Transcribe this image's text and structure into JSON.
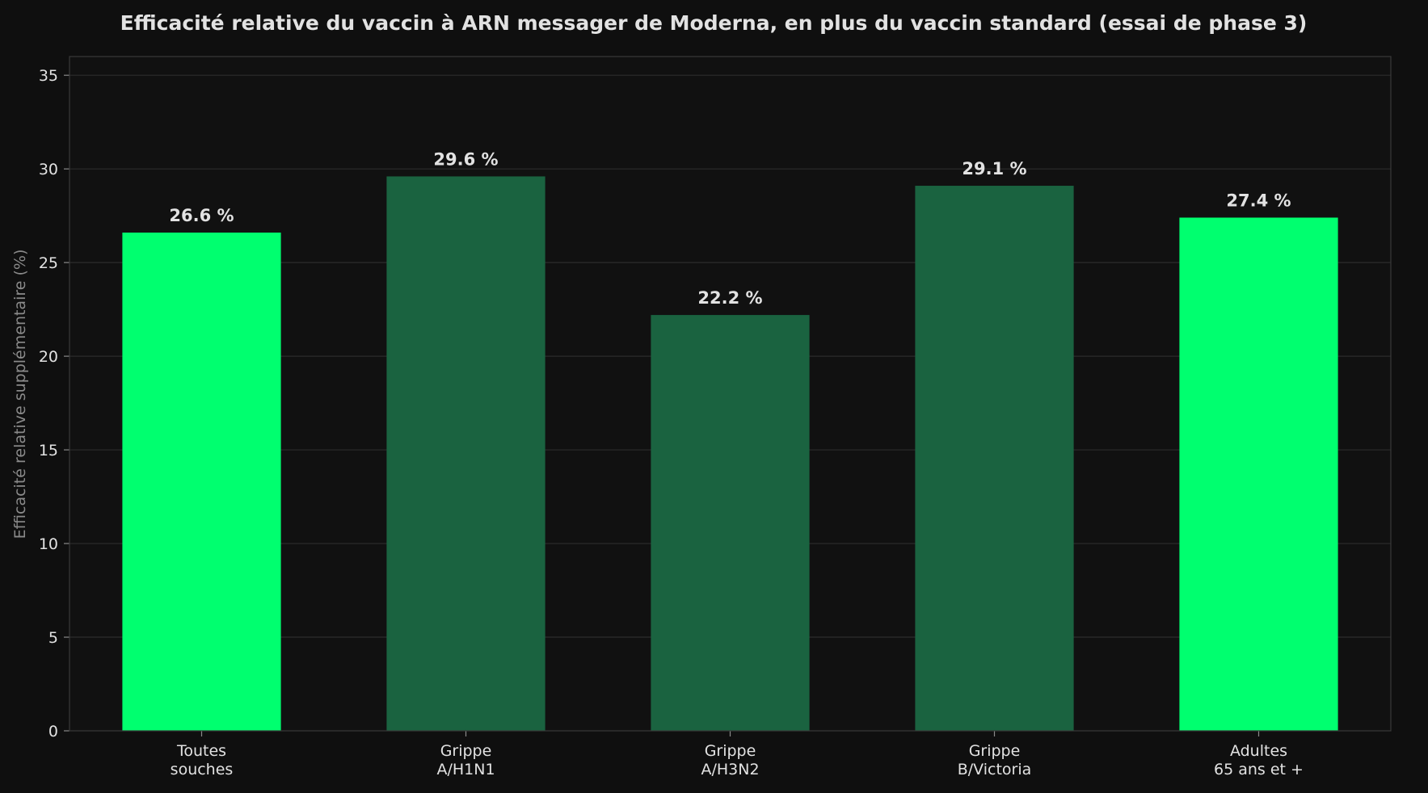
{
  "chart_data": {
    "type": "bar",
    "title": "Efficacité relative du vaccin à ARN messager de Moderna, en plus du vaccin standard (essai de phase 3)",
    "xlabel": "",
    "ylabel": "Efficacité relative supplémentaire (%)",
    "categories": [
      [
        "Toutes",
        "souches"
      ],
      [
        "Grippe",
        "A/H1N1"
      ],
      [
        "Grippe",
        "A/H3N2"
      ],
      [
        "Grippe",
        "B/Victoria"
      ],
      [
        "Adultes",
        "65 ans et +"
      ]
    ],
    "values": [
      26.6,
      29.6,
      22.2,
      29.1,
      27.4
    ],
    "data_labels": [
      "26.6 %",
      "29.6 %",
      "22.2 %",
      "29.1 %",
      "27.4 %"
    ],
    "bar_colors": [
      "#00ff6f",
      "#1a6340",
      "#1a6340",
      "#1a6340",
      "#00ff6f"
    ],
    "ylim": [
      0,
      36
    ],
    "yticks": [
      0,
      5,
      10,
      15,
      20,
      25,
      30,
      35
    ],
    "grid": true,
    "legend": "none",
    "colors": {
      "background": "#0f0f0f",
      "plot_background": "#111111",
      "grid": "#2c2c2c",
      "spine": "#3a3a3a",
      "text": "#e2e2e2",
      "axis_label": "#8a8a8a"
    }
  }
}
